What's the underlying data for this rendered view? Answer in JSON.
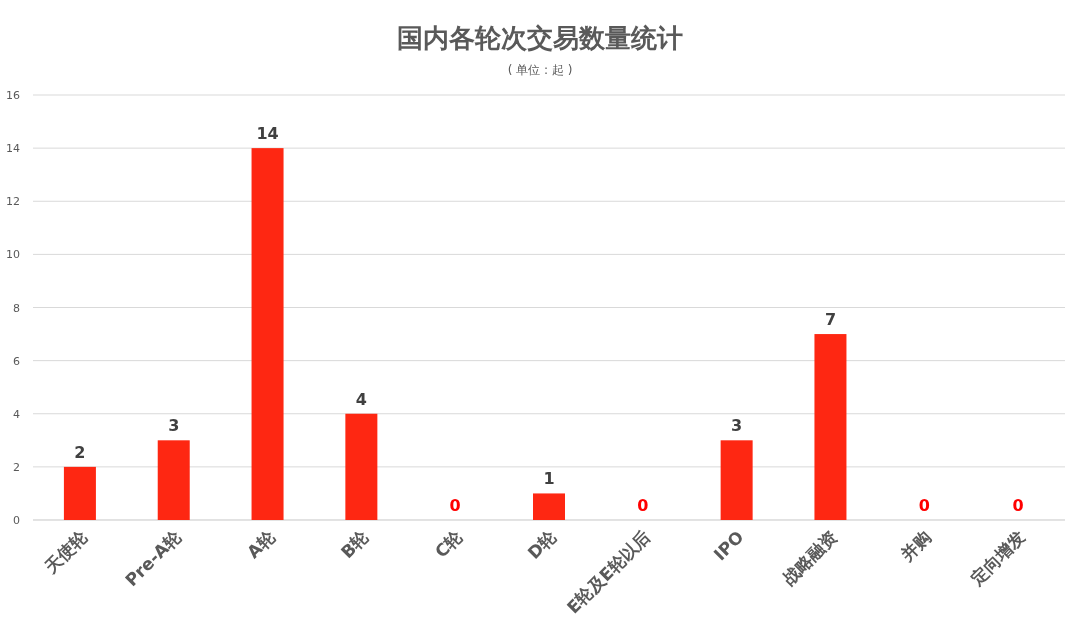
{
  "chart_data": {
    "type": "bar",
    "title": "国内各轮次交易数量统计",
    "subtitle": "( 单位 : 起 )",
    "categories": [
      "天使轮",
      "Pre-A轮",
      "A轮",
      "B轮",
      "C轮",
      "D轮",
      "E轮及E轮以后",
      "IPO",
      "战略融资",
      "并购",
      "定向增发"
    ],
    "values": [
      2,
      3,
      14,
      4,
      0,
      1,
      0,
      3,
      7,
      0,
      0
    ],
    "color": "#fe2712",
    "ylim": [
      0,
      16
    ],
    "yticks": [
      0,
      2,
      4,
      6,
      8,
      10,
      12,
      14,
      16
    ],
    "grid": "y",
    "data_labels": true
  }
}
